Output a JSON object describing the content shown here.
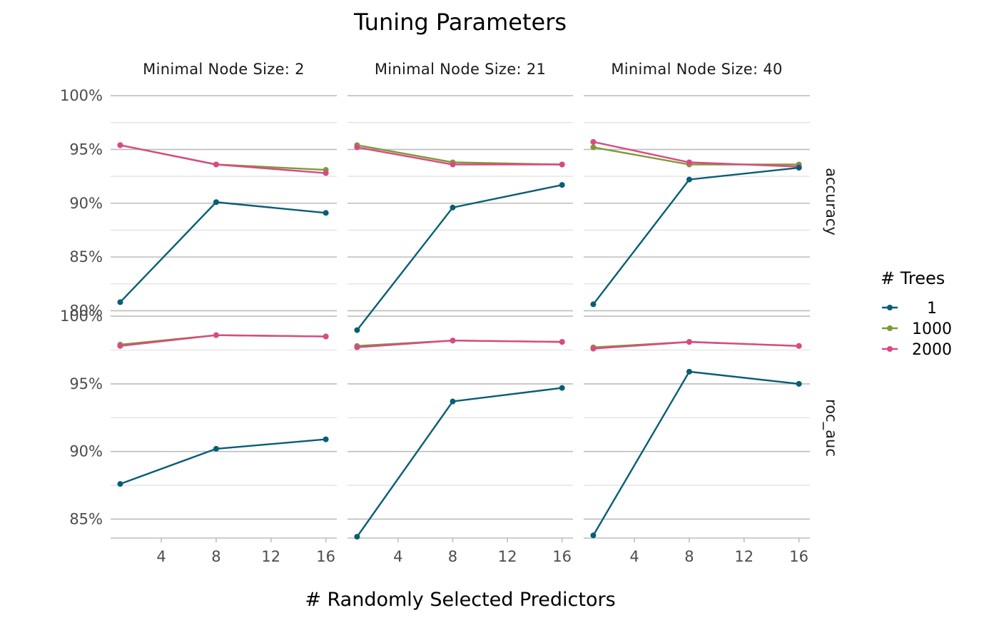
{
  "chart_data": {
    "type": "line",
    "title": "Tuning Parameters",
    "xlabel": "# Randomly Selected Predictors",
    "ylabel": "",
    "x_ticks": [
      4,
      8,
      12,
      16
    ],
    "xlim": [
      0.3,
      16.8
    ],
    "columns": [
      {
        "key": "n2",
        "label": "Minimal Node Size: 2"
      },
      {
        "key": "n21",
        "label": "Minimal Node Size: 21"
      },
      {
        "key": "n40",
        "label": "Minimal Node Size: 40"
      }
    ],
    "rows": [
      {
        "key": "accuracy",
        "label": "accuracy",
        "ylim": [
          0.795,
          1.008
        ],
        "y_ticks": [
          0.8,
          0.85,
          0.9,
          0.95,
          1.0
        ],
        "y_tick_labels": [
          "80%",
          "85%",
          "90%",
          "95%",
          "100%"
        ]
      },
      {
        "key": "roc_auc",
        "label": "roc_auc",
        "ylim": [
          0.836,
          0.999
        ],
        "y_ticks": [
          0.85,
          0.9,
          0.95,
          1.0
        ],
        "y_tick_labels": [
          "85%",
          "90%",
          "95%",
          "100%"
        ]
      }
    ],
    "legend": {
      "title": "# Trees",
      "position": "right",
      "entries": [
        {
          "name": "1",
          "color": "#085e74"
        },
        {
          "name": "1000",
          "color": "#7e9a36"
        },
        {
          "name": "2000",
          "color": "#d94a84"
        }
      ]
    },
    "x": [
      1,
      8,
      16
    ],
    "panels": {
      "accuracy": {
        "n2": {
          "1": [
            0.808,
            0.901,
            0.891
          ],
          "1000": [
            0.954,
            0.936,
            0.931
          ],
          "2000": [
            0.954,
            0.936,
            0.928
          ]
        },
        "n21": {
          "1": [
            0.782,
            0.896,
            0.917
          ],
          "1000": [
            0.954,
            0.938,
            0.936
          ],
          "2000": [
            0.952,
            0.936,
            0.936
          ]
        },
        "n40": {
          "1": [
            0.806,
            0.922,
            0.933
          ],
          "1000": [
            0.952,
            0.936,
            0.936
          ],
          "2000": [
            0.957,
            0.938,
            0.934
          ]
        }
      },
      "roc_auc": {
        "n2": {
          "1": [
            0.876,
            0.902,
            0.909
          ],
          "1000": [
            0.979,
            0.986,
            0.985
          ],
          "2000": [
            0.978,
            0.986,
            0.985
          ]
        },
        "n21": {
          "1": [
            0.837,
            0.937,
            0.947
          ],
          "1000": [
            0.978,
            0.982,
            0.981
          ],
          "2000": [
            0.977,
            0.982,
            0.981
          ]
        },
        "n40": {
          "1": [
            0.838,
            0.959,
            0.95
          ],
          "1000": [
            0.977,
            0.981,
            0.978
          ],
          "2000": [
            0.976,
            0.981,
            0.978
          ]
        }
      }
    }
  }
}
